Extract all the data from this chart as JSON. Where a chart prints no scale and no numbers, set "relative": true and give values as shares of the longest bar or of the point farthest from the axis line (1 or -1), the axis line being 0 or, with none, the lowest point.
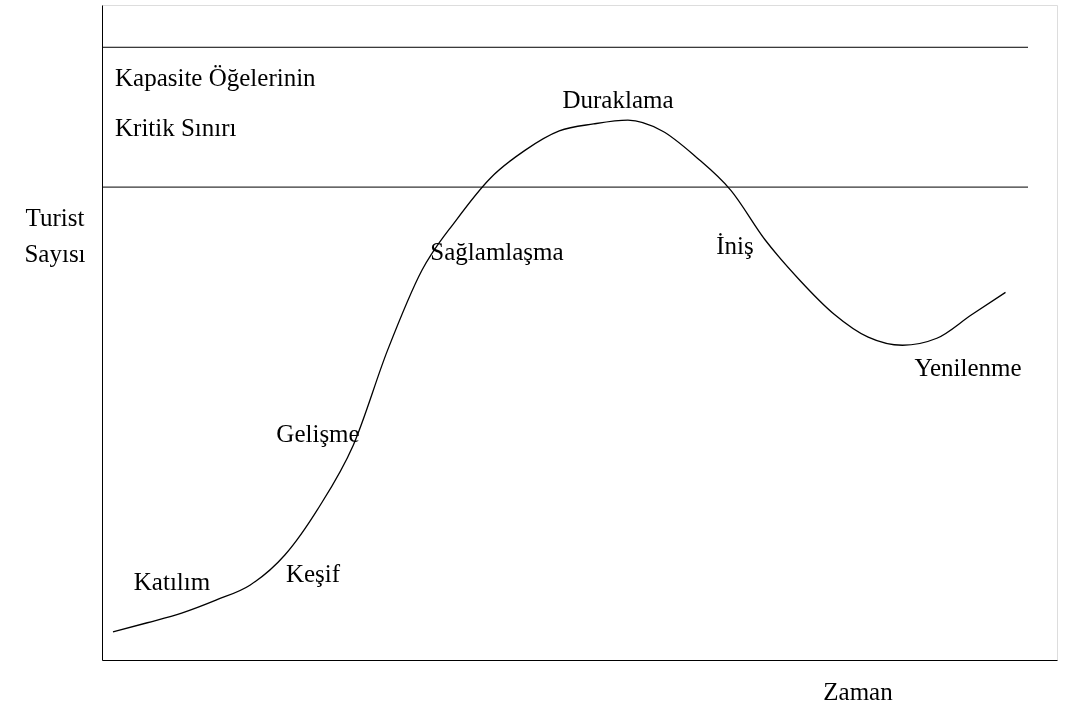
{
  "chart_data": {
    "type": "line",
    "relative": true,
    "marker": "none",
    "line_style": "solid",
    "xlabel": "Zaman",
    "ylabel": "Turist\nSayısı",
    "categories": [
      null,
      null,
      null,
      null,
      null,
      null,
      null,
      null,
      null,
      null,
      null,
      null,
      null,
      null,
      null,
      null,
      null,
      null,
      null,
      null,
      null,
      null,
      null,
      null,
      null,
      null,
      null
    ],
    "series": [
      {
        "color": "#000000",
        "values": [
          0.052,
          0.069,
          0.087,
          0.111,
          0.139,
          0.194,
          0.283,
          0.398,
          0.574,
          0.722,
          0.815,
          0.893,
          0.944,
          0.98,
          0.993,
          1.0,
          0.98,
          0.931,
          0.87,
          0.778,
          0.704,
          0.641,
          0.598,
          0.583,
          0.596,
          0.639,
          0.681
        ]
      }
    ],
    "ref_lines": [
      {
        "axis": "y",
        "value": 1.135,
        "color": "#000000"
      },
      {
        "axis": "y",
        "value": 0.876,
        "color": "#000000"
      }
    ],
    "annotations": [
      "Kapasite Öğelerinin\nKritik Sınırı",
      "Duraklama",
      "Sağlamlaşma",
      "İniş",
      "Yenilenme",
      "Gelişme",
      "Keşif",
      "Katılım"
    ]
  }
}
